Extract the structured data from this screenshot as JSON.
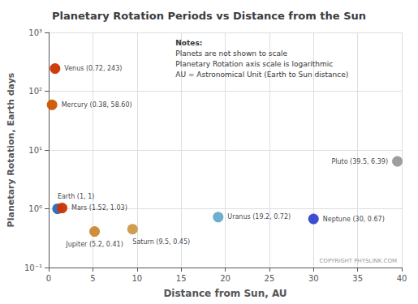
{
  "chart_data": {
    "type": "scatter",
    "title": "Planetary Rotation Periods vs Distance from the Sun",
    "xlabel": "Distance from Sun, AU",
    "ylabel": "Planetary Rotation, Earth days",
    "x": [
      0.38,
      0.72,
      1.0,
      1.52,
      5.2,
      9.5,
      19.2,
      30.0,
      39.5
    ],
    "values": [
      58.6,
      243,
      1.0,
      1.03,
      0.41,
      0.45,
      0.72,
      0.67,
      6.39
    ],
    "value_labels": [
      "Mercury (0.38, 58.60)",
      "Venus (0.72, 243)",
      "Earth (1, 1)",
      "Mars (1.52, 1.03)",
      "Jupiter (5.2, 0.41)",
      "Saturn (9.5, 0.45)",
      "Uranus (19.2, 0.72)",
      "Neptune (30, 0.67)",
      "Pluto (39.5, 6.39)"
    ],
    "colors": [
      "#cc5500",
      "#cc3300",
      "#3366bb",
      "#cc3300",
      "#cc8833",
      "#cc9944",
      "#66aacc",
      "#3344cc",
      "#999999"
    ],
    "xlim": [
      0,
      40
    ],
    "xticks": [
      0,
      5,
      10,
      15,
      20,
      25,
      30,
      35,
      40
    ],
    "ylim": [
      0.1,
      1000
    ],
    "yticks": [
      {
        "value": 0.1,
        "label": "10⁻¹"
      },
      {
        "value": 1,
        "label": "10⁰"
      },
      {
        "value": 10,
        "label": "10¹"
      },
      {
        "value": 100,
        "label": "10²"
      },
      {
        "value": 1000,
        "label": "10³"
      }
    ],
    "log": "y",
    "grid": true,
    "annotations": [
      "Notes:",
      "Planets are not shown to scale",
      "Planetary Rotation axis scale is logarithmic",
      "AU = Astronomical Unit (Earth to Sun distance)",
      "COPYRIGHT PHYSLINK.COM"
    ]
  }
}
